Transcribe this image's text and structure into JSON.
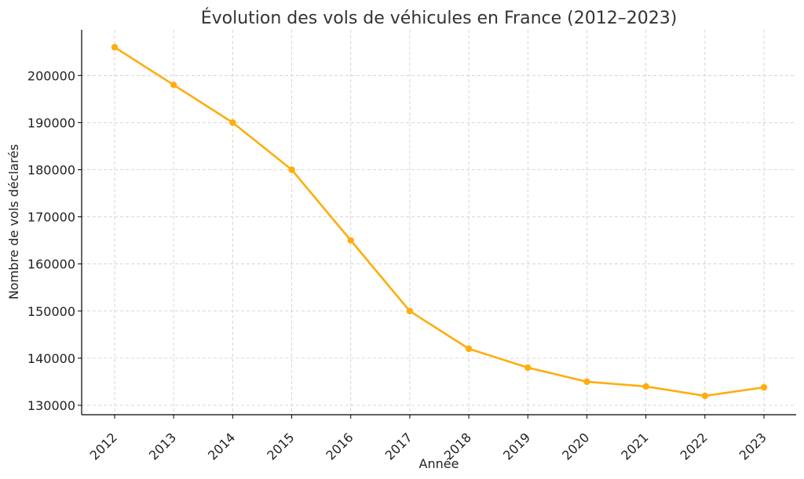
{
  "chart_data": {
    "type": "line",
    "title": "Évolution des vols de véhicules en France (2012–2023)",
    "xlabel": "Année",
    "ylabel": "Nombre de vols déclarés",
    "categories": [
      "2012",
      "2013",
      "2014",
      "2015",
      "2016",
      "2017",
      "2018",
      "2019",
      "2020",
      "2021",
      "2022",
      "2023"
    ],
    "series": [
      {
        "values": [
          206000,
          198000,
          190000,
          180000,
          165000,
          150000,
          142000,
          138000,
          135000,
          134000,
          132000,
          133800
        ]
      }
    ],
    "yticks": [
      130000,
      140000,
      150000,
      160000,
      170000,
      180000,
      190000,
      200000
    ],
    "ylim": [
      128000,
      209700
    ],
    "grid": true,
    "legend": "none",
    "colors": {
      "line": "#ffad0e",
      "marker": "#ffad0e"
    }
  }
}
